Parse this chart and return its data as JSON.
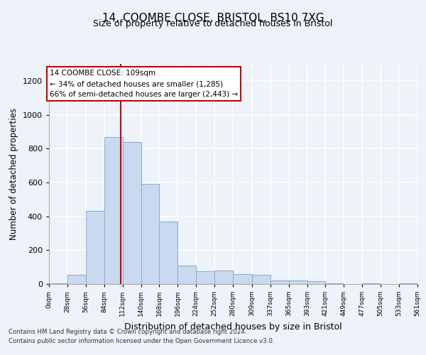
{
  "title": "14, COOMBE CLOSE, BRISTOL, BS10 7XG",
  "subtitle": "Size of property relative to detached houses in Bristol",
  "xlabel": "Distribution of detached houses by size in Bristol",
  "ylabel": "Number of detached properties",
  "bar_color": "#c9d9ef",
  "bar_edge_color": "#8eaacc",
  "annotation_box_color": "#ffffff",
  "annotation_box_edge_color": "#cc0000",
  "vline_color": "#cc0000",
  "vline_x": 109,
  "annotation_line1": "14 COOMBE CLOSE: 109sqm",
  "annotation_line2": "← 34% of detached houses are smaller (1,285)",
  "annotation_line3": "66% of semi-detached houses are larger (2,443) →",
  "footer1": "Contains HM Land Registry data © Crown copyright and database right 2024.",
  "footer2": "Contains public sector information licensed under the Open Government Licence v3.0.",
  "bin_edges": [
    0,
    28,
    56,
    84,
    112,
    140,
    168,
    196,
    224,
    252,
    280,
    309,
    337,
    365,
    393,
    421,
    449,
    477,
    505,
    533,
    561
  ],
  "bin_counts": [
    5,
    55,
    430,
    870,
    840,
    590,
    370,
    110,
    75,
    80,
    60,
    55,
    20,
    20,
    15,
    5,
    0,
    5,
    0,
    5
  ],
  "ylim": [
    0,
    1300
  ],
  "yticks": [
    0,
    200,
    400,
    600,
    800,
    1000,
    1200
  ],
  "background_color": "#eef2f9",
  "plot_background": "#eef2f9",
  "grid_color": "#ffffff",
  "tick_labels": [
    "0sqm",
    "28sqm",
    "56sqm",
    "84sqm",
    "112sqm",
    "140sqm",
    "168sqm",
    "196sqm",
    "224sqm",
    "252sqm",
    "280sqm",
    "309sqm",
    "337sqm",
    "365sqm",
    "393sqm",
    "421sqm",
    "449sqm",
    "477sqm",
    "505sqm",
    "533sqm",
    "561sqm"
  ]
}
